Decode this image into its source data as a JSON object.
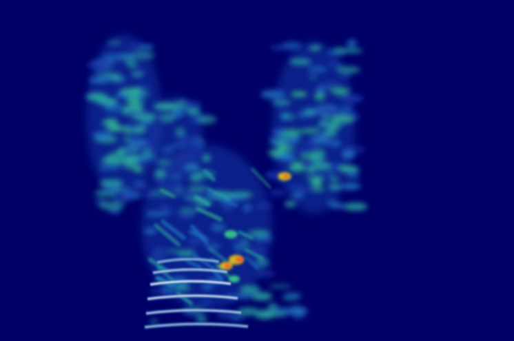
{
  "image": {
    "kind": "spectrogram",
    "colormap": "jet",
    "background_color": "#000066",
    "palette": {
      "low": "#1a3aa8",
      "mid_low": "#1f6fbf",
      "mid": "#2aa6a0",
      "mid_high": "#36c48a",
      "high": "#e0c020",
      "peak": "#ff3b1f",
      "harmonic": "#ffffff"
    },
    "regions": [
      "left-formant-column",
      "right-formant-column",
      "central-diagonal-streaks",
      "bottom-harmonic-stack"
    ]
  }
}
